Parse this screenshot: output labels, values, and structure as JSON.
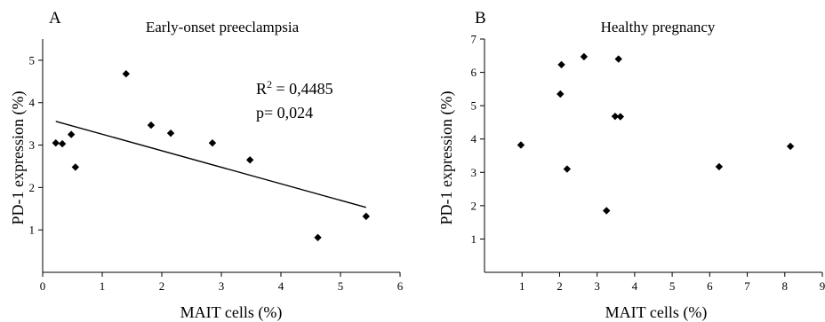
{
  "chart_data": [
    {
      "type": "scatter",
      "panel_label": "A",
      "title": "Early-onset preeclampsia",
      "xlabel": "MAIT cells (%)",
      "ylabel": "PD-1 expression (%)",
      "xlim": [
        0,
        6
      ],
      "ylim": [
        0,
        5.5
      ],
      "xticks": [
        "0",
        "1",
        "2",
        "3",
        "4",
        "5",
        "6"
      ],
      "yticks": [
        "1",
        "2",
        "3",
        "4",
        "5"
      ],
      "points": [
        {
          "x": 0.22,
          "y": 3.05
        },
        {
          "x": 0.33,
          "y": 3.03
        },
        {
          "x": 0.48,
          "y": 3.25
        },
        {
          "x": 0.55,
          "y": 2.48
        },
        {
          "x": 1.4,
          "y": 4.68
        },
        {
          "x": 1.82,
          "y": 3.47
        },
        {
          "x": 2.15,
          "y": 3.28
        },
        {
          "x": 2.85,
          "y": 3.05
        },
        {
          "x": 3.48,
          "y": 2.65
        },
        {
          "x": 4.62,
          "y": 0.82
        },
        {
          "x": 5.43,
          "y": 1.32
        }
      ],
      "trendline": {
        "x": [
          0.22,
          5.43
        ],
        "y": [
          3.56,
          1.53
        ]
      },
      "annotation": {
        "r2_prefix": "R",
        "r2_sup": "2",
        "r2_value": " = 0,4485",
        "p_text": "p= 0,024"
      },
      "grid": false
    },
    {
      "type": "scatter",
      "panel_label": "B",
      "title": "Healthy pregnancy",
      "xlabel": "MAIT cells (%)",
      "ylabel": "PD-1 expression (%)",
      "xlim": [
        0,
        9
      ],
      "ylim": [
        0,
        7
      ],
      "xticks": [
        "1",
        "2",
        "3",
        "4",
        "5",
        "6",
        "7",
        "8",
        "9"
      ],
      "yticks": [
        "1",
        "2",
        "3",
        "4",
        "5",
        "6",
        "7"
      ],
      "points": [
        {
          "x": 0.97,
          "y": 3.82
        },
        {
          "x": 2.02,
          "y": 5.35
        },
        {
          "x": 2.05,
          "y": 6.23
        },
        {
          "x": 2.2,
          "y": 3.1
        },
        {
          "x": 2.65,
          "y": 6.47
        },
        {
          "x": 3.25,
          "y": 1.85
        },
        {
          "x": 3.48,
          "y": 4.68
        },
        {
          "x": 3.57,
          "y": 6.4
        },
        {
          "x": 3.62,
          "y": 4.67
        },
        {
          "x": 6.25,
          "y": 3.17
        },
        {
          "x": 8.15,
          "y": 3.78
        }
      ],
      "grid": false
    }
  ]
}
